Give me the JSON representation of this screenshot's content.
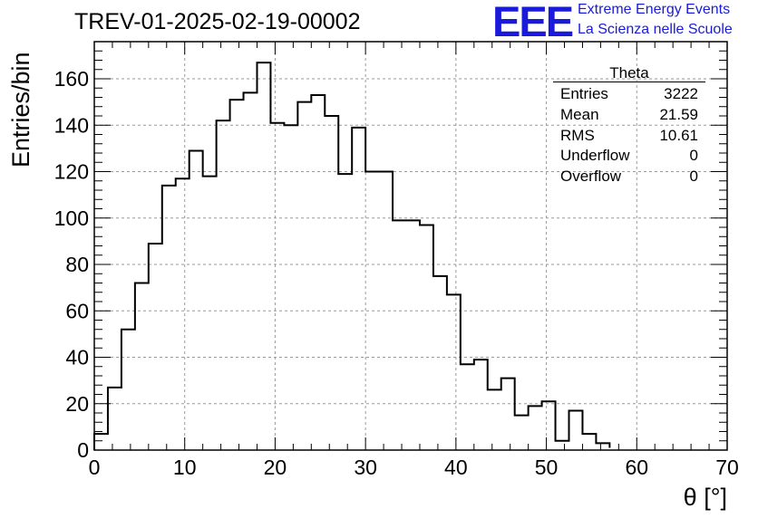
{
  "chart_data": {
    "type": "histogram",
    "title": "TREV-01-2025-02-19-00002",
    "xlabel": "θ [°]",
    "ylabel": "Entries/bin",
    "xlim": [
      0,
      70
    ],
    "ylim": [
      0,
      176
    ],
    "bin_width": 1.5,
    "x_ticks": [
      "0",
      "10",
      "20",
      "30",
      "40",
      "50",
      "60",
      "70"
    ],
    "y_ticks": [
      "0",
      "20",
      "40",
      "60",
      "80",
      "100",
      "120",
      "140",
      "160"
    ],
    "grid": true,
    "bin_edges": [
      0,
      1.5,
      3,
      4.5,
      6,
      7.5,
      9,
      10.5,
      12,
      13.5,
      15,
      16.5,
      18,
      19.5,
      21,
      22.5,
      24,
      25.5,
      27,
      28.5,
      30,
      31.5,
      33,
      34.5,
      36,
      37.5,
      39,
      40.5,
      42,
      43.5,
      45,
      46.5,
      48,
      49.5,
      51,
      52.5,
      54,
      55.5,
      57
    ],
    "values": [
      7,
      27,
      52,
      72,
      89,
      114,
      117,
      129,
      118,
      142,
      151,
      154,
      167,
      141,
      140,
      150,
      153,
      144,
      119,
      139,
      120,
      120,
      99,
      99,
      97,
      75,
      67,
      37,
      39,
      26,
      31,
      15,
      19,
      21,
      4,
      17,
      7,
      3,
      1
    ]
  },
  "stats_box": {
    "title": "Theta",
    "rows": [
      {
        "label": "Entries",
        "value": "3222"
      },
      {
        "label": "Mean",
        "value": "21.59"
      },
      {
        "label": "RMS",
        "value": "10.61"
      },
      {
        "label": "Underflow",
        "value": "0"
      },
      {
        "label": "Overflow",
        "value": "0"
      }
    ]
  },
  "logo": {
    "mark": "EEE",
    "line1": "Extreme Energy Events",
    "line2": "La Scienza nelle Scuole",
    "color": "#1a1adc"
  },
  "colors": {
    "line": "#000000",
    "grid": "#9a9a9a",
    "background": "#ffffff"
  }
}
